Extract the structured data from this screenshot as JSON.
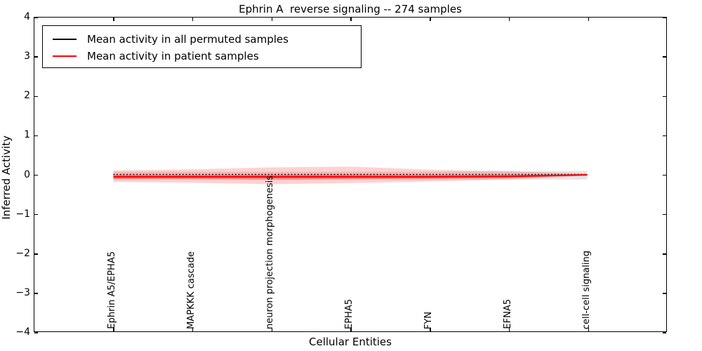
{
  "title": "Ephrin A  reverse signaling -- 274 samples",
  "legend": {
    "items": [
      {
        "label": "Mean activity in all permuted samples",
        "color": "#000000"
      },
      {
        "label": "Mean activity in patient samples",
        "color": "#ff0000"
      }
    ]
  },
  "chart_data": {
    "type": "line",
    "title": "Ephrin A  reverse signaling -- 274 samples",
    "xlabel": "Cellular Entities",
    "ylabel": "Inferred Activity",
    "ylim": [
      -4,
      4
    ],
    "yticks": [
      "4",
      "3",
      "2",
      "1",
      "0",
      "−1",
      "−2",
      "−3",
      "−4"
    ],
    "grid": false,
    "legend_position": "upper left",
    "categories": [
      "Ephrin A5/EPHA5",
      "MAPKKK cascade",
      "neuron projection morphogenesis",
      "EPHA5",
      "FYN",
      "EFNA5",
      "cell-cell signaling"
    ],
    "series": [
      {
        "name": "Mean activity in all permuted samples",
        "color": "#000000",
        "style": "dotted",
        "values": [
          0,
          0,
          0,
          0,
          0,
          0,
          0
        ]
      },
      {
        "name": "Mean activity in patient samples",
        "color": "#ff0000",
        "style": "solid",
        "values": [
          -0.06,
          -0.06,
          -0.06,
          -0.06,
          -0.06,
          -0.05,
          -0.01
        ]
      }
    ],
    "bands": [
      {
        "name": "permuted-range",
        "color": "#000000",
        "opacity": 0.1,
        "upper": [
          0.07,
          0.07,
          0.07,
          0.07,
          0.07,
          0.08,
          0.09
        ],
        "lower": [
          -0.12,
          -0.12,
          -0.13,
          -0.13,
          -0.13,
          -0.13,
          -0.13
        ]
      },
      {
        "name": "patient-range-outer",
        "color": "#ff0000",
        "opacity": 0.18,
        "upper": [
          0.1,
          0.13,
          0.18,
          0.2,
          0.12,
          0.08,
          0.02
        ],
        "lower": [
          -0.19,
          -0.21,
          -0.25,
          -0.22,
          -0.18,
          -0.13,
          -0.03
        ]
      },
      {
        "name": "patient-range-inner",
        "color": "#ff0000",
        "opacity": 0.3,
        "upper": [
          0.0,
          0.0,
          0.0,
          0.01,
          0.0,
          0.0,
          0.0
        ],
        "lower": [
          -0.12,
          -0.12,
          -0.13,
          -0.12,
          -0.11,
          -0.09,
          -0.02
        ]
      }
    ]
  }
}
